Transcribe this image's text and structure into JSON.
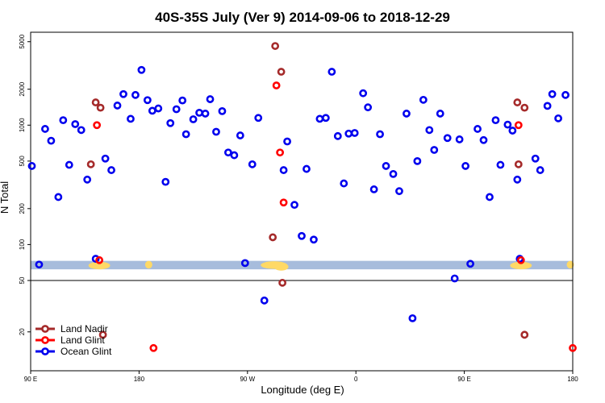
{
  "chart_data": {
    "type": "scatter",
    "title": "40S-35S July (Ver 9)   2014-09-06 to 2018-12-29",
    "xlabel": "Longitude (deg E)",
    "ylabel": "N Total",
    "x_ticks": [
      {
        "value": 90,
        "label": "90 E"
      },
      {
        "value": 180,
        "label": "180"
      },
      {
        "value": 270,
        "label": "90 W"
      },
      {
        "value": 360,
        "label": "0"
      },
      {
        "value": 450,
        "label": "90 E"
      },
      {
        "value": 540,
        "label": "180"
      }
    ],
    "xlim": [
      90,
      540
    ],
    "y_scale": "log",
    "ylim_upper": [
      50,
      6000
    ],
    "ylim_lower": [
      10,
      50
    ],
    "y_ticks_upper": [
      {
        "value": 100,
        "label": "100"
      },
      {
        "value": 200,
        "label": "200"
      },
      {
        "value": 500,
        "label": "500"
      },
      {
        "value": 1000,
        "label": "1000"
      },
      {
        "value": 2000,
        "label": "2000"
      },
      {
        "value": 5000,
        "label": "5000"
      }
    ],
    "y_ticks_lower": [
      {
        "value": 20,
        "label": "20"
      },
      {
        "value": 50,
        "label": "50"
      }
    ],
    "map_strip": {
      "ocean_color": "#a7bcdc",
      "land_color": "#ffd966",
      "y_range": [
        62,
        73
      ]
    },
    "legend_position": "bottom-left",
    "series": [
      {
        "name": "Land Nadir",
        "color": "#a52a2a",
        "points": [
          [
            140,
            470
          ],
          [
            144,
            1550
          ],
          [
            148,
            1400
          ],
          [
            291,
            115
          ],
          [
            293,
            4600
          ],
          [
            298,
            2800
          ],
          [
            299,
            48
          ],
          [
            494,
            1550
          ],
          [
            495,
            470
          ],
          [
            500,
            1400
          ],
          [
            150,
            19
          ],
          [
            500,
            19
          ]
        ]
      },
      {
        "name": "Land Glint",
        "color": "#ff0000",
        "points": [
          [
            145,
            1000
          ],
          [
            147,
            74
          ],
          [
            294,
            2150
          ],
          [
            297,
            590
          ],
          [
            300,
            225
          ],
          [
            192,
            15
          ],
          [
            495,
            1000
          ],
          [
            497,
            74
          ],
          [
            540,
            15
          ]
        ]
      },
      {
        "name": "Ocean Glint",
        "color": "#0000ee",
        "points": [
          [
            91,
            455
          ],
          [
            97,
            68
          ],
          [
            102,
            930
          ],
          [
            107,
            740
          ],
          [
            113,
            250
          ],
          [
            117,
            1100
          ],
          [
            122,
            465
          ],
          [
            127,
            1020
          ],
          [
            132,
            910
          ],
          [
            137,
            350
          ],
          [
            144,
            76
          ],
          [
            152,
            525
          ],
          [
            157,
            420
          ],
          [
            162,
            1460
          ],
          [
            167,
            1820
          ],
          [
            173,
            1130
          ],
          [
            177,
            1790
          ],
          [
            182,
            2900
          ],
          [
            187,
            1620
          ],
          [
            191,
            1320
          ],
          [
            196,
            1380
          ],
          [
            202,
            335
          ],
          [
            206,
            1040
          ],
          [
            211,
            1360
          ],
          [
            216,
            1610
          ],
          [
            219,
            840
          ],
          [
            225,
            1120
          ],
          [
            230,
            1270
          ],
          [
            235,
            1250
          ],
          [
            239,
            1650
          ],
          [
            244,
            880
          ],
          [
            249,
            1310
          ],
          [
            254,
            590
          ],
          [
            259,
            560
          ],
          [
            264,
            820
          ],
          [
            268,
            70
          ],
          [
            274,
            470
          ],
          [
            279,
            1150
          ],
          [
            284,
            35
          ],
          [
            300,
            420
          ],
          [
            303,
            730
          ],
          [
            309,
            215
          ],
          [
            315,
            118
          ],
          [
            319,
            430
          ],
          [
            325,
            110
          ],
          [
            330,
            1130
          ],
          [
            335,
            1150
          ],
          [
            340,
            2800
          ],
          [
            345,
            810
          ],
          [
            350,
            325
          ],
          [
            354,
            850
          ],
          [
            359,
            860
          ],
          [
            366,
            1850
          ],
          [
            370,
            1410
          ],
          [
            375,
            290
          ],
          [
            380,
            840
          ],
          [
            385,
            455
          ],
          [
            391,
            390
          ],
          [
            396,
            280
          ],
          [
            402,
            1250
          ],
          [
            407,
            25.5
          ],
          [
            411,
            500
          ],
          [
            416,
            1630
          ],
          [
            421,
            910
          ],
          [
            425,
            620
          ],
          [
            430,
            1250
          ],
          [
            436,
            780
          ],
          [
            442,
            52
          ],
          [
            446,
            760
          ],
          [
            451,
            455
          ],
          [
            455,
            69
          ],
          [
            461,
            930
          ],
          [
            466,
            750
          ],
          [
            471,
            250
          ],
          [
            476,
            1100
          ],
          [
            480,
            465
          ],
          [
            486,
            1010
          ],
          [
            490,
            900
          ],
          [
            494,
            350
          ],
          [
            496,
            76
          ],
          [
            509,
            525
          ],
          [
            513,
            420
          ],
          [
            519,
            1450
          ],
          [
            523,
            1820
          ],
          [
            528,
            1140
          ],
          [
            534,
            1790
          ]
        ]
      }
    ]
  }
}
